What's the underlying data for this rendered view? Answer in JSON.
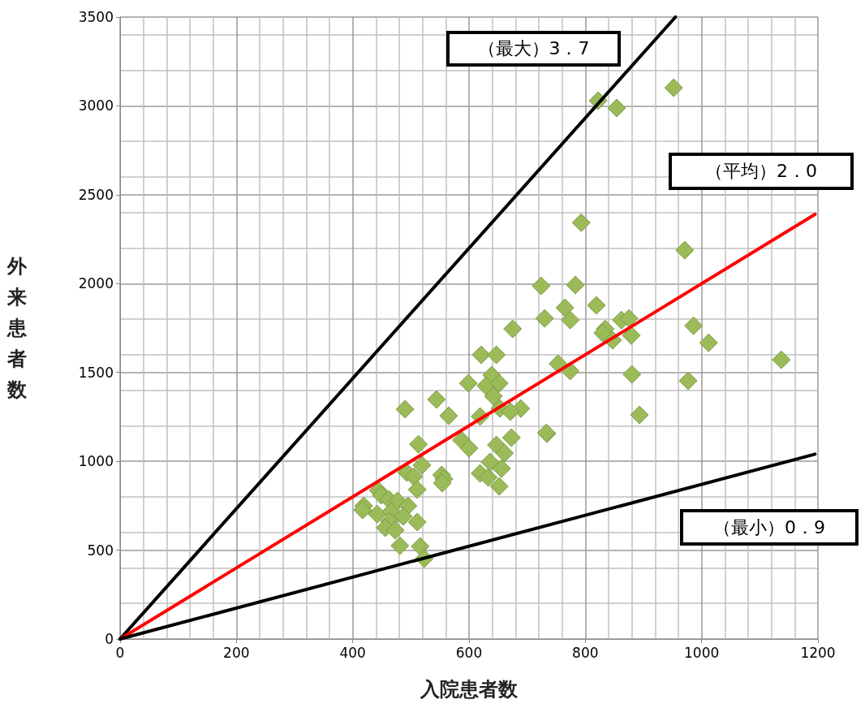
{
  "chart_data": {
    "type": "scatter",
    "xlabel": "入院患者数",
    "ylabel": "外来患者数",
    "xlim": [
      0,
      1200
    ],
    "xticks": [
      0,
      200,
      400,
      600,
      800,
      1000,
      1200
    ],
    "ylim": [
      0,
      3500
    ],
    "yticks": [
      0,
      500,
      1000,
      1500,
      2000,
      2500,
      3000,
      3500
    ],
    "grid": true,
    "annotations": [
      "（最大）3．7",
      "（平均）2．0",
      "（最小）0．9"
    ],
    "series": [
      {
        "type": "scatter",
        "marker": "diamond",
        "color": "#9bbb59",
        "x": [
          952,
          822,
          854,
          793,
          971,
          724,
          783,
          819,
          765,
          730,
          774,
          862,
          875,
          834,
          830,
          847,
          879,
          986,
          1012,
          1137,
          753,
          774,
          880,
          977,
          893,
          734,
          689,
          675,
          621,
          647,
          599,
          639,
          629,
          652,
          642,
          544,
          490,
          565,
          619,
          653,
          671,
          733,
          673,
          647,
          661,
          587,
          600,
          513,
          519,
          493,
          505,
          553,
          557,
          554,
          511,
          619,
          633,
          636,
          656,
          652,
          444,
          449,
          462,
          477,
          495,
          419,
          417,
          442,
          466,
          487,
          463,
          511,
          456,
          473,
          481,
          516,
          523
        ],
        "values": [
          3102,
          3029,
          2988,
          2343,
          2188,
          1987,
          1992,
          1878,
          1864,
          1804,
          1795,
          1795,
          1804,
          1745,
          1722,
          1681,
          1708,
          1763,
          1667,
          1571,
          1549,
          1508,
          1489,
          1453,
          1261,
          1156,
          1297,
          1745,
          1599,
          1599,
          1439,
          1485,
          1425,
          1439,
          1366,
          1348,
          1293,
          1256,
          1252,
          1297,
          1279,
          1160,
          1133,
          1092,
          1046,
          1119,
          1074,
          1096,
          978,
          937,
          914,
          923,
          900,
          877,
          841,
          932,
          909,
          996,
          959,
          859,
          836,
          809,
          786,
          777,
          749,
          749,
          726,
          703,
          717,
          690,
          662,
          658,
          626,
          612,
          525,
          521,
          452
        ]
      },
      {
        "type": "line",
        "color": "#000000",
        "x": [
          0,
          955
        ],
        "values": [
          0,
          3500
        ]
      },
      {
        "type": "line",
        "color": "#ff0000",
        "x": [
          0,
          1195
        ],
        "values": [
          0,
          2390
        ]
      },
      {
        "type": "line",
        "color": "#000000",
        "x": [
          0,
          1195
        ],
        "values": [
          0,
          1040
        ]
      }
    ]
  }
}
